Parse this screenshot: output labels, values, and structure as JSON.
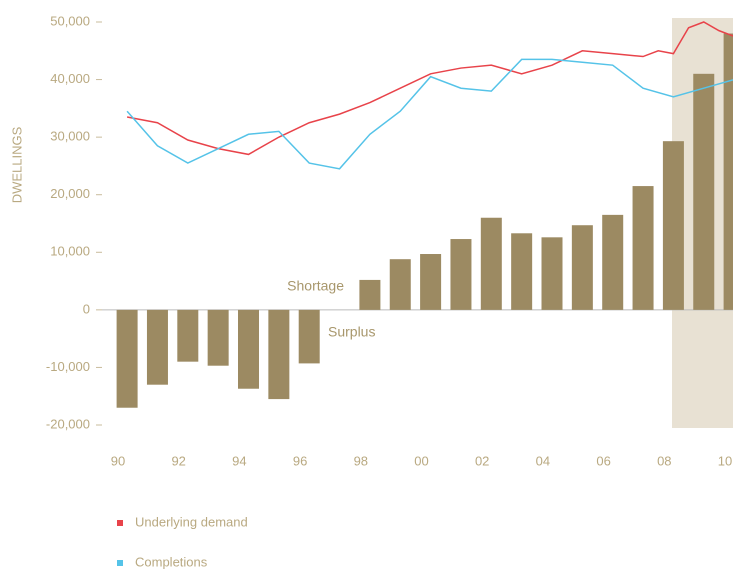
{
  "chart_data": {
    "type": "bar",
    "y_axis_label": "DWELLINGS",
    "annotations": [
      "Shortage",
      "Surplus"
    ],
    "x": [
      1990,
      1991,
      1992,
      1993,
      1994,
      1995,
      1996,
      1997,
      1998,
      1999,
      2000,
      2001,
      2002,
      2003,
      2004,
      2005,
      2006,
      2007,
      2008,
      2009,
      2010
    ],
    "values": [
      -17000,
      -13000,
      -9000,
      -9700,
      -13700,
      -15500,
      -9300,
      0,
      5200,
      8800,
      9700,
      12300,
      16000,
      13300,
      12600,
      14700,
      16500,
      21500,
      29300,
      41000,
      48000
    ],
    "color": "#9c8a62",
    "lines": [
      {
        "name": "Underlying demand",
        "color": "#e8434a",
        "x": [
          1990,
          1991,
          1992,
          1993,
          1994,
          1995,
          1996,
          1997,
          1998,
          1999,
          2000,
          2001,
          2002,
          2003,
          2004,
          2005,
          2006,
          2007,
          2007.5,
          2008,
          2008.5,
          2009,
          2009.5,
          2010
        ],
        "values": [
          33500,
          32500,
          29500,
          28000,
          27000,
          30000,
          32500,
          34000,
          36000,
          38500,
          41000,
          42000,
          42500,
          41000,
          42500,
          45000,
          44500,
          44000,
          45000,
          44500,
          49000,
          50000,
          48500,
          47500
        ]
      },
      {
        "name": "Completions",
        "color": "#55c3e8",
        "x": [
          1990,
          1991,
          1992,
          1993,
          1994,
          1995,
          1996,
          1997,
          1998,
          1999,
          2000,
          2001,
          2002,
          2003,
          2004,
          2005,
          2006,
          2007,
          2008,
          2009,
          2010
        ],
        "values": [
          34500,
          28500,
          25500,
          28000,
          30500,
          31000,
          25500,
          24500,
          30500,
          34500,
          40500,
          38500,
          38000,
          43500,
          43500,
          43000,
          42500,
          38500,
          37000,
          38500,
          40000
        ]
      }
    ],
    "xlim": [
      1989.7,
      2010.3
    ],
    "xticks": [
      {
        "value": 1990,
        "label": "90"
      },
      {
        "value": 1992,
        "label": "92"
      },
      {
        "value": 1994,
        "label": "94"
      },
      {
        "value": 1996,
        "label": "96"
      },
      {
        "value": 1998,
        "label": "98"
      },
      {
        "value": 2000,
        "label": "00"
      },
      {
        "value": 2002,
        "label": "02"
      },
      {
        "value": 2004,
        "label": "04"
      },
      {
        "value": 2006,
        "label": "06"
      },
      {
        "value": 2008,
        "label": "08"
      },
      {
        "value": 2010,
        "label": "10"
      }
    ],
    "ylim": [
      -20000,
      50000
    ],
    "yticks": [
      {
        "value": -20000,
        "label": "-20,000"
      },
      {
        "value": -10000,
        "label": "-10,000"
      },
      0,
      {
        "value": 10000,
        "label": "10,000"
      },
      {
        "value": 20000,
        "label": "20,000"
      },
      {
        "value": 30000,
        "label": "30,000"
      },
      {
        "value": 40000,
        "label": "40,000"
      },
      {
        "value": 50000,
        "label": "50,000"
      }
    ]
  }
}
